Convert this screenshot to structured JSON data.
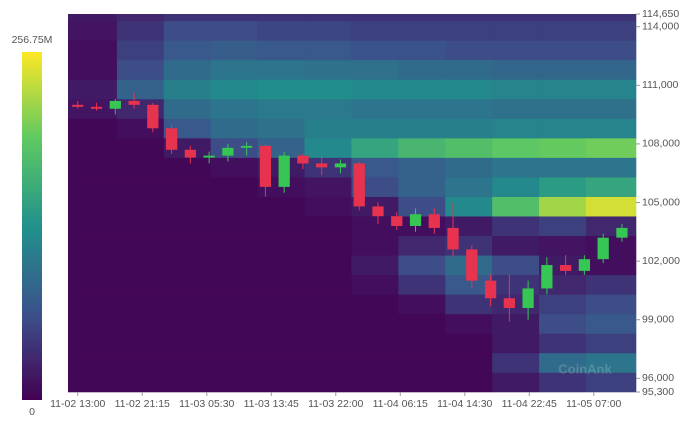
{
  "chart_data": {
    "type": "liquidation-heatmap",
    "watermark": "CoinAnk",
    "xlim": [
      -1.25,
      71.4
    ],
    "ylim": [
      95300,
      114650
    ],
    "xticks": [
      {
        "value": 0,
        "label": "11-02 13:00"
      },
      {
        "value": 8.25,
        "label": "11-02 21:15"
      },
      {
        "value": 16.5,
        "label": "11-03 05:30"
      },
      {
        "value": 24.75,
        "label": "11-03 13:45"
      },
      {
        "value": 33,
        "label": "11-03 22:00"
      },
      {
        "value": 41.25,
        "label": "11-04 06:15"
      },
      {
        "value": 49.5,
        "label": "11-04 14:30"
      },
      {
        "value": 57.75,
        "label": "11-04 22:45"
      },
      {
        "value": 66,
        "label": "11-05 07:00"
      }
    ],
    "yticks": [
      {
        "value": 114650,
        "label": "114,650"
      },
      {
        "value": 114000,
        "label": "114,000"
      },
      {
        "value": 111000,
        "label": "111,000"
      },
      {
        "value": 108000,
        "label": "108,000"
      },
      {
        "value": 105000,
        "label": "105,000"
      },
      {
        "value": 102000,
        "label": "102,000"
      },
      {
        "value": 99000,
        "label": "99,000"
      },
      {
        "value": 96000,
        "label": "96,000"
      },
      {
        "value": 95300,
        "label": "95,300"
      }
    ],
    "colorbar": {
      "min": {
        "value": 0,
        "label": "0"
      },
      "max": {
        "value": 256.75,
        "label": "256.75M"
      }
    },
    "heatmap": {
      "time_bins": [
        -1.25,
        5,
        11,
        17,
        23,
        29,
        35,
        41,
        47,
        53,
        59,
        65,
        71.4
      ],
      "price_bins": [
        95300,
        96300,
        97300,
        98300,
        99300,
        100300,
        101300,
        102300,
        103300,
        104300,
        105300,
        106300,
        107300,
        108300,
        109300,
        110300,
        111300,
        112300,
        113300,
        114300,
        114650
      ],
      "values": [
        [
          5,
          5,
          5,
          5,
          5,
          5,
          5,
          5,
          5,
          20,
          40,
          50
        ],
        [
          5,
          5,
          5,
          5,
          5,
          5,
          5,
          5,
          5,
          40,
          90,
          100
        ],
        [
          5,
          5,
          5,
          5,
          5,
          5,
          5,
          5,
          5,
          20,
          40,
          50
        ],
        [
          5,
          5,
          5,
          5,
          5,
          5,
          5,
          5,
          10,
          20,
          60,
          70
        ],
        [
          5,
          5,
          5,
          5,
          5,
          5,
          5,
          10,
          40,
          30,
          50,
          60
        ],
        [
          5,
          5,
          5,
          5,
          5,
          5,
          10,
          40,
          70,
          40,
          30,
          40
        ],
        [
          5,
          5,
          5,
          5,
          5,
          5,
          20,
          60,
          90,
          60,
          20,
          10
        ],
        [
          5,
          5,
          5,
          5,
          5,
          5,
          10,
          30,
          40,
          20,
          15,
          10
        ],
        [
          5,
          5,
          5,
          5,
          5,
          5,
          10,
          10,
          20,
          40,
          50,
          30
        ],
        [
          5,
          5,
          5,
          5,
          5,
          10,
          20,
          60,
          120,
          180,
          220,
          240
        ],
        [
          5,
          5,
          5,
          5,
          10,
          15,
          60,
          80,
          100,
          120,
          140,
          150
        ],
        [
          5,
          5,
          5,
          10,
          20,
          40,
          70,
          80,
          90,
          100,
          100,
          100
        ],
        [
          5,
          5,
          20,
          60,
          80,
          120,
          150,
          170,
          180,
          190,
          195,
          200
        ],
        [
          5,
          10,
          70,
          90,
          95,
          110,
          110,
          110,
          110,
          115,
          115,
          115
        ],
        [
          15,
          30,
          90,
          100,
          105,
          105,
          100,
          100,
          100,
          95,
          95,
          95
        ],
        [
          20,
          80,
          110,
          120,
          125,
          125,
          120,
          120,
          120,
          115,
          115,
          115
        ],
        [
          10,
          60,
          90,
          100,
          100,
          95,
          95,
          90,
          90,
          85,
          85,
          85
        ],
        [
          10,
          50,
          70,
          75,
          70,
          70,
          65,
          65,
          60,
          60,
          60,
          60
        ],
        [
          15,
          40,
          60,
          60,
          55,
          55,
          50,
          50,
          50,
          50,
          50,
          50
        ],
        [
          20,
          30,
          40,
          40,
          40,
          40,
          40,
          40,
          40,
          40,
          40,
          40
        ]
      ]
    },
    "candles": {
      "up_color": "#35c653",
      "down_color": "#e8334f",
      "x": [
        0,
        2.4,
        4.8,
        7.2,
        9.6,
        12,
        14.4,
        16.8,
        19.2,
        21.6,
        24,
        26.4,
        28.8,
        31.2,
        33.6,
        36,
        38.4,
        40.8,
        43.2,
        45.6,
        48,
        50.4,
        52.8,
        55.2,
        57.6,
        60,
        62.4,
        64.8,
        67.2,
        69.6
      ],
      "open": [
        110000,
        109900,
        109800,
        110200,
        110000,
        108800,
        107700,
        107300,
        107400,
        107800,
        107900,
        105800,
        107400,
        107000,
        106800,
        107000,
        104800,
        104300,
        103800,
        104400,
        103700,
        102600,
        101000,
        100100,
        99600,
        100600,
        101800,
        101500,
        102100,
        103200
      ],
      "high": [
        110200,
        110100,
        110300,
        110600,
        110100,
        109000,
        107900,
        107600,
        108000,
        108100,
        108000,
        107600,
        107500,
        107300,
        107200,
        107100,
        105000,
        104500,
        104700,
        104700,
        105000,
        102800,
        101300,
        101300,
        101000,
        102200,
        102300,
        102300,
        103400,
        103900
      ],
      "low": [
        109800,
        109700,
        109500,
        109800,
        108600,
        107500,
        107000,
        107000,
        107100,
        107400,
        105300,
        105500,
        106700,
        106400,
        106500,
        104600,
        103900,
        103600,
        103500,
        103400,
        102200,
        100600,
        99700,
        98900,
        99000,
        100300,
        101300,
        101300,
        101900,
        103000
      ],
      "close": [
        109900,
        109800,
        110200,
        110000,
        108800,
        107700,
        107300,
        107400,
        107800,
        107900,
        105800,
        107400,
        107000,
        106800,
        107000,
        104800,
        104300,
        103800,
        104400,
        103700,
        102600,
        101000,
        100100,
        99600,
        100600,
        101800,
        101500,
        102100,
        103200,
        103700
      ]
    }
  }
}
